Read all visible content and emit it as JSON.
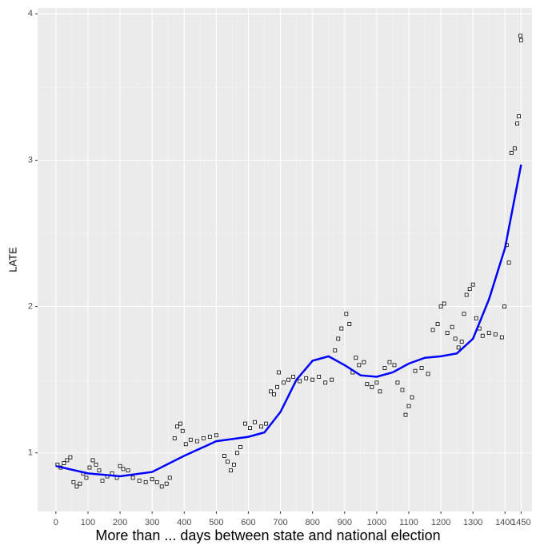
{
  "chart_data": {
    "type": "scatter",
    "x_label": "More than ... days between state and national election",
    "y_label": "LATE",
    "xlim": [
      -57,
      1484
    ],
    "ylim": [
      0.6,
      4.04
    ],
    "xticks": [
      0,
      100,
      200,
      300,
      400,
      500,
      600,
      700,
      800,
      900,
      1000,
      1100,
      1200,
      1300,
      1400,
      1450
    ],
    "yticks": [
      1,
      2,
      3,
      4
    ],
    "grid": true,
    "points": {
      "color": "#000000",
      "x": [
        5,
        15,
        25,
        35,
        45,
        55,
        65,
        75,
        85,
        95,
        105,
        115,
        125,
        135,
        145,
        160,
        175,
        190,
        200,
        210,
        225,
        240,
        260,
        280,
        300,
        315,
        330,
        345,
        355,
        370,
        378,
        388,
        395,
        405,
        420,
        440,
        460,
        480,
        500,
        525,
        535,
        545,
        555,
        565,
        575,
        590,
        605,
        620,
        640,
        655,
        670,
        680,
        690,
        695,
        710,
        725,
        740,
        760,
        780,
        800,
        820,
        840,
        860,
        870,
        880,
        890,
        905,
        915,
        925,
        935,
        945,
        960,
        970,
        985,
        1000,
        1010,
        1025,
        1040,
        1055,
        1065,
        1080,
        1090,
        1100,
        1110,
        1120,
        1140,
        1160,
        1175,
        1190,
        1200,
        1210,
        1220,
        1235,
        1245,
        1255,
        1265,
        1272,
        1280,
        1290,
        1300,
        1310,
        1320,
        1330,
        1350,
        1370,
        1390,
        1398,
        1405,
        1412,
        1420,
        1430,
        1438,
        1443,
        1448,
        1450
      ],
      "values": [
        0.92,
        0.9,
        0.93,
        0.95,
        0.97,
        0.8,
        0.77,
        0.79,
        0.86,
        0.83,
        0.9,
        0.95,
        0.92,
        0.88,
        0.81,
        0.84,
        0.86,
        0.83,
        0.91,
        0.89,
        0.88,
        0.83,
        0.81,
        0.8,
        0.82,
        0.8,
        0.77,
        0.79,
        0.83,
        1.1,
        1.18,
        1.2,
        1.15,
        1.06,
        1.09,
        1.08,
        1.1,
        1.11,
        1.12,
        0.98,
        0.94,
        0.88,
        0.92,
        1.0,
        1.04,
        1.2,
        1.17,
        1.21,
        1.18,
        1.2,
        1.42,
        1.4,
        1.45,
        1.55,
        1.48,
        1.5,
        1.52,
        1.49,
        1.51,
        1.5,
        1.52,
        1.48,
        1.5,
        1.7,
        1.78,
        1.85,
        1.95,
        1.88,
        1.55,
        1.65,
        1.6,
        1.62,
        1.47,
        1.45,
        1.48,
        1.42,
        1.58,
        1.62,
        1.6,
        1.48,
        1.43,
        1.26,
        1.32,
        1.38,
        1.56,
        1.58,
        1.54,
        1.84,
        1.88,
        2.0,
        2.02,
        1.82,
        1.86,
        1.78,
        1.72,
        1.76,
        1.95,
        2.08,
        2.12,
        2.15,
        1.92,
        1.85,
        1.8,
        1.82,
        1.81,
        1.79,
        2.0,
        2.42,
        2.3,
        3.05,
        3.08,
        3.25,
        3.3,
        3.85,
        3.82
      ]
    },
    "smooth": {
      "color": "#0000ff",
      "x": [
        0,
        100,
        200,
        300,
        400,
        500,
        600,
        650,
        700,
        750,
        800,
        850,
        900,
        950,
        1000,
        1050,
        1100,
        1150,
        1200,
        1250,
        1300,
        1350,
        1400,
        1450
      ],
      "values": [
        0.91,
        0.86,
        0.84,
        0.87,
        0.98,
        1.08,
        1.11,
        1.14,
        1.28,
        1.5,
        1.63,
        1.66,
        1.6,
        1.53,
        1.52,
        1.55,
        1.61,
        1.65,
        1.66,
        1.68,
        1.78,
        2.05,
        2.4,
        2.97
      ]
    }
  }
}
